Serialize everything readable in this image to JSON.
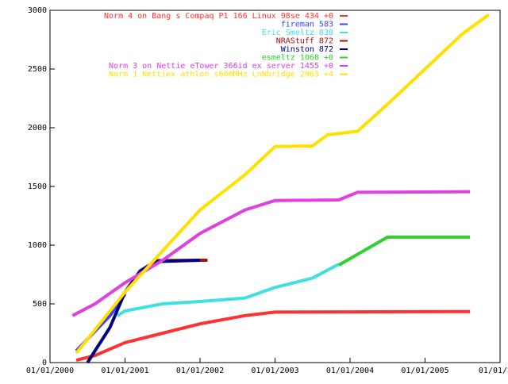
{
  "chart_data": {
    "type": "line",
    "xlim": [
      2000,
      2006
    ],
    "ylim": [
      0,
      3000
    ],
    "xticks": [
      {
        "value": 2000,
        "label": "01/01/2000"
      },
      {
        "value": 2001,
        "label": "01/01/2001"
      },
      {
        "value": 2002,
        "label": "01/01/2002"
      },
      {
        "value": 2003,
        "label": "01/01/2003"
      },
      {
        "value": 2004,
        "label": "01/01/2004"
      },
      {
        "value": 2005,
        "label": "01/01/2005"
      },
      {
        "value": 2006,
        "label": "01/01/200"
      }
    ],
    "yticks": [
      0,
      500,
      1000,
      1500,
      2000,
      2500,
      3000
    ],
    "series": [
      {
        "name": "Norm  4 on Bang  s Compaq P1 166 Linux 98se 434 +0",
        "color": "#ff3030",
        "x": [
          2000.35,
          2000.6,
          2001.0,
          2001.5,
          2002.0,
          2002.6,
          2003.0,
          2004.0,
          2005.6
        ],
        "values": [
          20,
          60,
          170,
          250,
          330,
          400,
          430,
          432,
          434
        ]
      },
      {
        "name": "fireman 583",
        "color": "#4040ff",
        "x": [
          2000.35,
          2000.8,
          2001.0
        ],
        "values": [
          100,
          400,
          583
        ]
      },
      {
        "name": "Eric Smeltz 838",
        "color": "#40e0e0",
        "x": [
          2000.9,
          2001.0,
          2001.5,
          2002.0,
          2002.6,
          2003.0,
          2003.5,
          2003.85
        ],
        "values": [
          400,
          440,
          500,
          520,
          550,
          640,
          720,
          838
        ]
      },
      {
        "name": "NRAStuff 872",
        "color": "#a01010",
        "x": [
          2001.4,
          2002.1
        ],
        "values": [
          868,
          872
        ]
      },
      {
        "name": "Winston 872",
        "color": "#000080",
        "x": [
          2000.5,
          2000.8,
          2001.0,
          2001.2,
          2001.4,
          2002.0
        ],
        "values": [
          0,
          300,
          600,
          780,
          860,
          872
        ]
      },
      {
        "name": "esmeltz 1068 +0",
        "color": "#30d030",
        "x": [
          2003.85,
          2004.5,
          2005.6
        ],
        "values": [
          830,
          1068,
          1068
        ]
      },
      {
        "name": "Norm  3 on Nettie eTower 366id ex server  1455 +0",
        "color": "#e040e0",
        "x": [
          2000.3,
          2000.6,
          2001.0,
          2001.5,
          2002.0,
          2002.6,
          2003.0,
          2003.85,
          2004.1,
          2005.6
        ],
        "values": [
          400,
          500,
          680,
          870,
          1100,
          1300,
          1380,
          1385,
          1450,
          1455
        ]
      },
      {
        "name": "Norm  1 Nettiex athlon s600MHz LnNbridge  2963 +4",
        "color": "#ffe000",
        "x": [
          2000.35,
          2001.0,
          2002.0,
          2002.6,
          2003.0,
          2003.5,
          2003.7,
          2004.1,
          2004.5,
          2005.0,
          2005.5,
          2005.85
        ],
        "values": [
          80,
          600,
          1300,
          1600,
          1840,
          1845,
          1940,
          1970,
          2200,
          2500,
          2800,
          2963
        ]
      }
    ]
  }
}
